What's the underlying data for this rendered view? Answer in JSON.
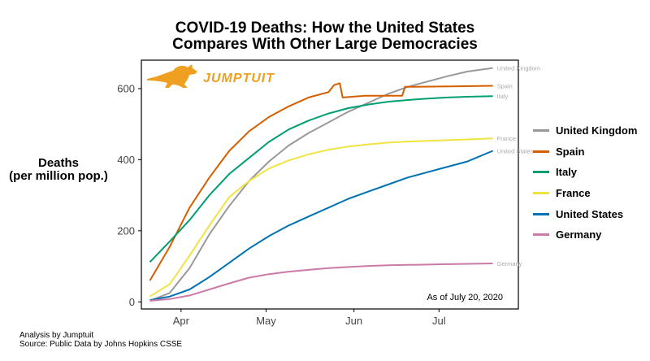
{
  "title_line1": "COVID-19 Deaths: How the United States",
  "title_line2": "Compares With Other Large Democracies",
  "ylabel_line1": "Deaths",
  "ylabel_line2": "(per million pop.)",
  "logo_text": "JUMPTUIT",
  "annotation": "As of July 20, 2020",
  "footer_line1": "Analysis by Jumptuit",
  "footer_line2": "Source: Public Data by Johns Hopkins CSSE",
  "colors": {
    "united_kingdom": "#999999",
    "spain": "#d55e00",
    "italy": "#009e73",
    "france": "#f0e442",
    "united_states": "#0072b2",
    "germany": "#cc79a7",
    "logo": "#f0a020"
  },
  "chart_data": {
    "type": "line",
    "title": "COVID-19 Deaths: How the United States Compares With Other Large Democracies",
    "xlabel": "",
    "ylabel": "Deaths (per million pop.)",
    "x_ticks": [
      "Apr",
      "May",
      "Jun",
      "Jul"
    ],
    "x_tick_dates": [
      "2020-04-01",
      "2020-05-01",
      "2020-06-01",
      "2020-07-01"
    ],
    "xlim": [
      "2020-03-18",
      "2020-07-29"
    ],
    "y_ticks": [
      0,
      200,
      400,
      600
    ],
    "ylim": [
      -20,
      680
    ],
    "grid": false,
    "legend_position": "right",
    "series": [
      {
        "name": "United Kingdom",
        "key": "united_kingdom",
        "end_label": "United Kingdom",
        "points": [
          [
            "2020-03-21",
            3
          ],
          [
            "2020-03-28",
            25
          ],
          [
            "2020-04-04",
            95
          ],
          [
            "2020-04-11",
            190
          ],
          [
            "2020-04-18",
            270
          ],
          [
            "2020-04-25",
            340
          ],
          [
            "2020-05-02",
            395
          ],
          [
            "2020-05-09",
            440
          ],
          [
            "2020-05-16",
            475
          ],
          [
            "2020-05-23",
            505
          ],
          [
            "2020-05-30",
            535
          ],
          [
            "2020-06-06",
            560
          ],
          [
            "2020-06-13",
            585
          ],
          [
            "2020-06-20",
            605
          ],
          [
            "2020-06-27",
            620
          ],
          [
            "2020-07-04",
            635
          ],
          [
            "2020-07-11",
            648
          ],
          [
            "2020-07-20",
            658
          ]
        ]
      },
      {
        "name": "Spain",
        "key": "spain",
        "end_label": "Spain",
        "points": [
          [
            "2020-03-21",
            60
          ],
          [
            "2020-03-28",
            155
          ],
          [
            "2020-04-04",
            265
          ],
          [
            "2020-04-11",
            350
          ],
          [
            "2020-04-18",
            425
          ],
          [
            "2020-04-25",
            480
          ],
          [
            "2020-05-02",
            520
          ],
          [
            "2020-05-09",
            550
          ],
          [
            "2020-05-16",
            575
          ],
          [
            "2020-05-23",
            590
          ],
          [
            "2020-05-25",
            610
          ],
          [
            "2020-05-27",
            615
          ],
          [
            "2020-05-28",
            575
          ],
          [
            "2020-06-05",
            580
          ],
          [
            "2020-06-18",
            580
          ],
          [
            "2020-06-19",
            605
          ],
          [
            "2020-07-05",
            606
          ],
          [
            "2020-07-20",
            608
          ]
        ]
      },
      {
        "name": "Italy",
        "key": "italy",
        "end_label": "Italy",
        "points": [
          [
            "2020-03-21",
            112
          ],
          [
            "2020-03-28",
            170
          ],
          [
            "2020-04-04",
            230
          ],
          [
            "2020-04-11",
            300
          ],
          [
            "2020-04-18",
            360
          ],
          [
            "2020-04-25",
            405
          ],
          [
            "2020-05-02",
            450
          ],
          [
            "2020-05-09",
            485
          ],
          [
            "2020-05-16",
            510
          ],
          [
            "2020-05-23",
            530
          ],
          [
            "2020-05-30",
            545
          ],
          [
            "2020-06-06",
            555
          ],
          [
            "2020-06-13",
            563
          ],
          [
            "2020-06-20",
            568
          ],
          [
            "2020-06-27",
            572
          ],
          [
            "2020-07-04",
            575
          ],
          [
            "2020-07-11",
            577
          ],
          [
            "2020-07-20",
            579
          ]
        ]
      },
      {
        "name": "France",
        "key": "france",
        "end_label": "France",
        "points": [
          [
            "2020-03-21",
            15
          ],
          [
            "2020-03-28",
            50
          ],
          [
            "2020-04-04",
            130
          ],
          [
            "2020-04-11",
            215
          ],
          [
            "2020-04-18",
            295
          ],
          [
            "2020-04-25",
            340
          ],
          [
            "2020-05-02",
            375
          ],
          [
            "2020-05-09",
            398
          ],
          [
            "2020-05-16",
            415
          ],
          [
            "2020-05-23",
            428
          ],
          [
            "2020-05-30",
            437
          ],
          [
            "2020-06-06",
            443
          ],
          [
            "2020-06-13",
            448
          ],
          [
            "2020-06-20",
            451
          ],
          [
            "2020-06-27",
            453
          ],
          [
            "2020-07-04",
            455
          ],
          [
            "2020-07-11",
            457
          ],
          [
            "2020-07-20",
            460
          ]
        ]
      },
      {
        "name": "United States",
        "key": "united_states",
        "end_label": "United States",
        "points": [
          [
            "2020-03-21",
            5
          ],
          [
            "2020-03-28",
            15
          ],
          [
            "2020-04-04",
            35
          ],
          [
            "2020-04-11",
            70
          ],
          [
            "2020-04-18",
            110
          ],
          [
            "2020-04-25",
            150
          ],
          [
            "2020-05-02",
            185
          ],
          [
            "2020-05-09",
            215
          ],
          [
            "2020-05-16",
            240
          ],
          [
            "2020-05-23",
            265
          ],
          [
            "2020-05-30",
            290
          ],
          [
            "2020-06-06",
            310
          ],
          [
            "2020-06-13",
            330
          ],
          [
            "2020-06-20",
            350
          ],
          [
            "2020-06-27",
            365
          ],
          [
            "2020-07-04",
            380
          ],
          [
            "2020-07-11",
            395
          ],
          [
            "2020-07-20",
            425
          ]
        ]
      },
      {
        "name": "Germany",
        "key": "germany",
        "end_label": "Germany",
        "points": [
          [
            "2020-03-21",
            3
          ],
          [
            "2020-03-28",
            8
          ],
          [
            "2020-04-04",
            18
          ],
          [
            "2020-04-11",
            35
          ],
          [
            "2020-04-18",
            52
          ],
          [
            "2020-04-25",
            68
          ],
          [
            "2020-05-02",
            78
          ],
          [
            "2020-05-09",
            85
          ],
          [
            "2020-05-16",
            90
          ],
          [
            "2020-05-23",
            95
          ],
          [
            "2020-05-30",
            98
          ],
          [
            "2020-06-06",
            101
          ],
          [
            "2020-06-13",
            103
          ],
          [
            "2020-06-20",
            104
          ],
          [
            "2020-06-27",
            105
          ],
          [
            "2020-07-04",
            106
          ],
          [
            "2020-07-11",
            107
          ],
          [
            "2020-07-20",
            108
          ]
        ]
      }
    ]
  }
}
